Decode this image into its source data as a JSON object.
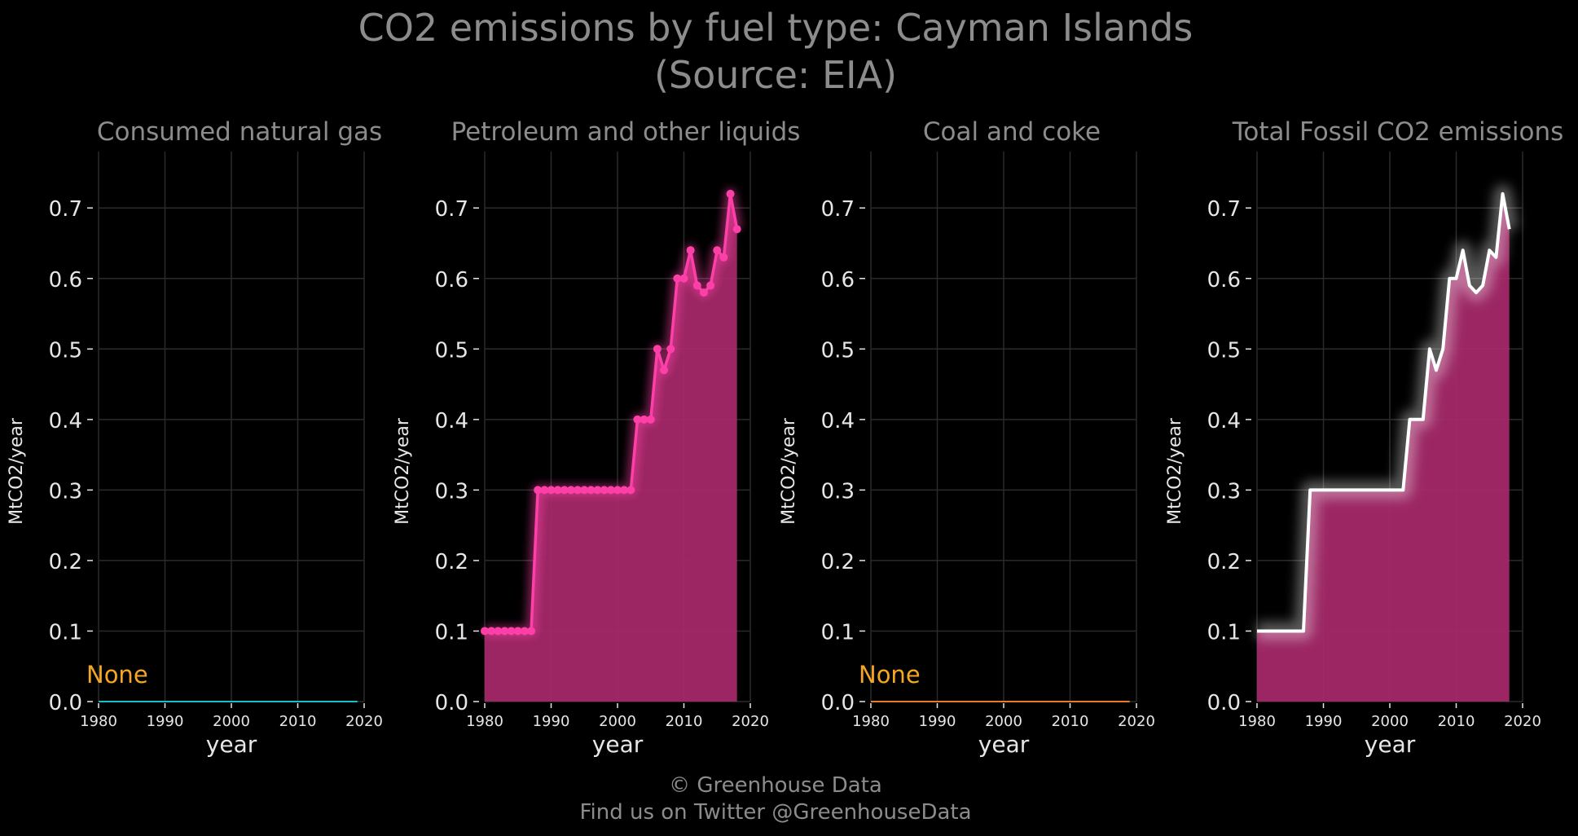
{
  "figure": {
    "title_line1": "CO2 emissions by fuel type: Cayman Islands",
    "title_line2": "(Source: EIA)",
    "footer_line1": "© Greenhouse Data",
    "footer_line2": "Find us on Twitter @GreenhouseData"
  },
  "colors": {
    "background": "#000000",
    "title": "#8c8c8c",
    "axis_text": "#e6e6e6",
    "grid": "#2b2b2b",
    "natural_gas": "#17becf",
    "petroleum": "#ff3fa8",
    "petroleum_fill": "#a8296b",
    "coal": "#e8792b",
    "total_line": "#ffffff",
    "none_label": "#f5a623"
  },
  "chart_data": [
    {
      "type": "line",
      "title": "Consumed natural gas",
      "xlabel": "year",
      "ylabel": "MtCO2/year",
      "xlim": [
        1980,
        2020
      ],
      "ylim": [
        0,
        0.78
      ],
      "xticks": [
        1980,
        1990,
        2000,
        2010,
        2020
      ],
      "yticks": [
        0.0,
        0.1,
        0.2,
        0.3,
        0.4,
        0.5,
        0.6,
        0.7
      ],
      "annotation": "None",
      "series": [
        {
          "x": [
            1980,
            2019
          ],
          "y": [
            0,
            0
          ]
        }
      ]
    },
    {
      "type": "area",
      "title": "Petroleum and other liquids",
      "xlabel": "year",
      "ylabel": "MtCO2/year",
      "xlim": [
        1980,
        2020
      ],
      "ylim": [
        0,
        0.78
      ],
      "xticks": [
        1980,
        1990,
        2000,
        2010,
        2020
      ],
      "yticks": [
        0.0,
        0.1,
        0.2,
        0.3,
        0.4,
        0.5,
        0.6,
        0.7
      ],
      "series": [
        {
          "x": [
            1980,
            1981,
            1982,
            1983,
            1984,
            1985,
            1986,
            1987,
            1988,
            1989,
            1990,
            1991,
            1992,
            1993,
            1994,
            1995,
            1996,
            1997,
            1998,
            1999,
            2000,
            2001,
            2002,
            2003,
            2004,
            2005,
            2006,
            2007,
            2008,
            2009,
            2010,
            2011,
            2012,
            2013,
            2014,
            2015,
            2016,
            2017,
            2018
          ],
          "y": [
            0.1,
            0.1,
            0.1,
            0.1,
            0.1,
            0.1,
            0.1,
            0.1,
            0.3,
            0.3,
            0.3,
            0.3,
            0.3,
            0.3,
            0.3,
            0.3,
            0.3,
            0.3,
            0.3,
            0.3,
            0.3,
            0.3,
            0.3,
            0.4,
            0.4,
            0.4,
            0.5,
            0.47,
            0.5,
            0.6,
            0.6,
            0.64,
            0.59,
            0.58,
            0.59,
            0.64,
            0.63,
            0.72,
            0.67
          ]
        }
      ]
    },
    {
      "type": "line",
      "title": "Coal and coke",
      "xlabel": "year",
      "ylabel": "MtCO2/year",
      "xlim": [
        1980,
        2020
      ],
      "ylim": [
        0,
        0.78
      ],
      "xticks": [
        1980,
        1990,
        2000,
        2010,
        2020
      ],
      "yticks": [
        0.0,
        0.1,
        0.2,
        0.3,
        0.4,
        0.5,
        0.6,
        0.7
      ],
      "annotation": "None",
      "series": [
        {
          "x": [
            1980,
            2019
          ],
          "y": [
            0,
            0
          ]
        }
      ]
    },
    {
      "type": "area",
      "title": "Total Fossil CO2 emissions",
      "xlabel": "year",
      "ylabel": "MtCO2/year",
      "xlim": [
        1980,
        2020
      ],
      "ylim": [
        0,
        0.78
      ],
      "xticks": [
        1980,
        1990,
        2000,
        2010,
        2020
      ],
      "yticks": [
        0.0,
        0.1,
        0.2,
        0.3,
        0.4,
        0.5,
        0.6,
        0.7
      ],
      "series": [
        {
          "x": [
            1980,
            1981,
            1982,
            1983,
            1984,
            1985,
            1986,
            1987,
            1988,
            1989,
            1990,
            1991,
            1992,
            1993,
            1994,
            1995,
            1996,
            1997,
            1998,
            1999,
            2000,
            2001,
            2002,
            2003,
            2004,
            2005,
            2006,
            2007,
            2008,
            2009,
            2010,
            2011,
            2012,
            2013,
            2014,
            2015,
            2016,
            2017,
            2018
          ],
          "y": [
            0.1,
            0.1,
            0.1,
            0.1,
            0.1,
            0.1,
            0.1,
            0.1,
            0.3,
            0.3,
            0.3,
            0.3,
            0.3,
            0.3,
            0.3,
            0.3,
            0.3,
            0.3,
            0.3,
            0.3,
            0.3,
            0.3,
            0.3,
            0.4,
            0.4,
            0.4,
            0.5,
            0.47,
            0.5,
            0.6,
            0.6,
            0.64,
            0.59,
            0.58,
            0.59,
            0.64,
            0.63,
            0.72,
            0.67
          ]
        }
      ]
    }
  ]
}
